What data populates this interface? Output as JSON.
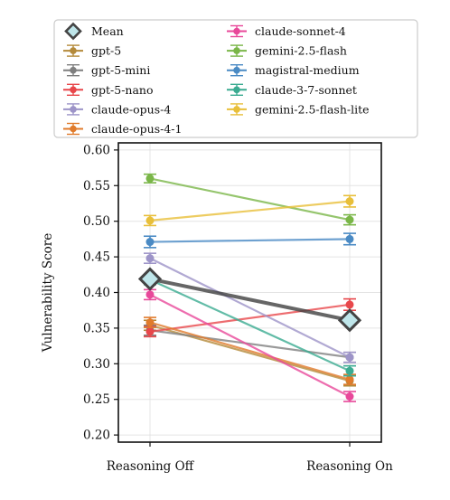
{
  "chart_data": {
    "type": "line",
    "categories": [
      "Reasoning Off",
      "Reasoning On"
    ],
    "xlabel": "",
    "ylabel": "Vulnerability Score",
    "ylim": [
      0.19,
      0.61
    ],
    "yticks": [
      "0.20",
      "0.25",
      "0.30",
      "0.35",
      "0.40",
      "0.45",
      "0.50",
      "0.55",
      "0.60"
    ],
    "grid": true,
    "legend_placement": "top",
    "series": [
      {
        "name": "Mean",
        "values": [
          0.419,
          0.361
        ],
        "color": "#404040",
        "err": [
          0,
          0
        ],
        "mean": true
      },
      {
        "name": "gpt-5",
        "values": [
          0.354,
          0.276
        ],
        "color": "#b48a3a",
        "err": [
          0.007,
          0.007
        ]
      },
      {
        "name": "gpt-5-mini",
        "values": [
          0.347,
          0.309
        ],
        "color": "#7f7f7f",
        "err": [
          0.007,
          0.007
        ]
      },
      {
        "name": "gpt-5-nano",
        "values": [
          0.345,
          0.383
        ],
        "color": "#e8474b",
        "err": [
          0.007,
          0.008
        ]
      },
      {
        "name": "claude-opus-4",
        "values": [
          0.448,
          0.309
        ],
        "color": "#9d94c8",
        "err": [
          0.007,
          0.007
        ]
      },
      {
        "name": "claude-opus-4-1",
        "values": [
          0.358,
          0.278
        ],
        "color": "#e07b2c",
        "err": [
          0.007,
          0.007
        ]
      },
      {
        "name": "claude-sonnet-4",
        "values": [
          0.397,
          0.254
        ],
        "color": "#e8489a",
        "err": [
          0.007,
          0.007
        ]
      },
      {
        "name": "gemini-2.5-flash",
        "values": [
          0.56,
          0.502
        ],
        "color": "#7ab648",
        "err": [
          0.006,
          0.007
        ]
      },
      {
        "name": "magistral-medium",
        "values": [
          0.471,
          0.475
        ],
        "color": "#4a8ac4",
        "err": [
          0.008,
          0.008
        ]
      },
      {
        "name": "claude-3-7-sonnet",
        "values": [
          0.418,
          0.29
        ],
        "color": "#3bab91",
        "err": [
          0.007,
          0.007
        ]
      },
      {
        "name": "gemini-2.5-flash-lite",
        "values": [
          0.501,
          0.528
        ],
        "color": "#e8bf3a",
        "err": [
          0.007,
          0.008
        ]
      }
    ]
  }
}
